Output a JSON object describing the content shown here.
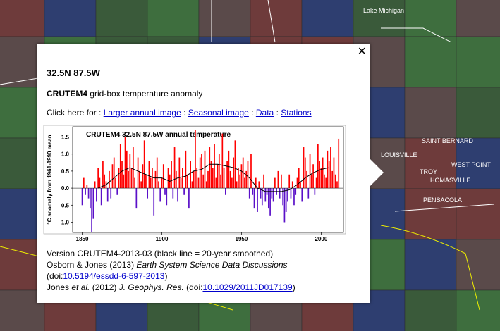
{
  "map_labels": [
    "Lake Michigan",
    "SAINT BERNARD",
    "LOUISVILLE",
    "WEST POINT",
    "TROY",
    "HOMASVILLE",
    "PENSACOLA"
  ],
  "popup": {
    "close": "×",
    "title": "32.5N 87.5W",
    "subtitle": [
      {
        "text": "CRUTEM4",
        "bold": true
      },
      {
        "text": " grid-box temperature anomaly"
      }
    ],
    "links": [
      {
        "text": "Click here for : "
      },
      {
        "text": "Larger annual image",
        "link": true
      },
      {
        "text": " : "
      },
      {
        "text": "Seasonal image",
        "link": true
      },
      {
        "text": " : "
      },
      {
        "text": "Data",
        "link": true
      },
      {
        "text": " : "
      },
      {
        "text": "Stations",
        "link": true
      }
    ],
    "footer": [
      [
        {
          "text": "Version CRUTEM4-2013-03 (black line = 20-year smoothed)"
        }
      ],
      [
        {
          "text": "Osborn & Jones (2013) "
        },
        {
          "text": "Earth System Science Data Discussions",
          "italic": true
        }
      ],
      [
        {
          "text": "(doi:"
        },
        {
          "text": "10.5194/essdd-6-597-2013",
          "link": true
        },
        {
          "text": ")"
        }
      ],
      [
        {
          "text": "Jones "
        },
        {
          "text": "et al.",
          "italic": true
        },
        {
          "text": " (2012) "
        },
        {
          "text": "J. Geophys. Res.",
          "italic": true
        },
        {
          "text": " (doi:"
        },
        {
          "text": "10.1029/2011JD017139",
          "link": true
        },
        {
          "text": ")"
        }
      ]
    ]
  },
  "chart_data": {
    "type": "bar",
    "title": "CRUTEM4 32.5N 87.5W annual temperature",
    "y_label": "°C anomaly from 1961-1990 mean",
    "xlim": [
      1844,
      2014
    ],
    "xticks": [
      1850,
      1900,
      1950,
      2000
    ],
    "ylim": [
      -1.3,
      1.8
    ],
    "yticks": [
      {
        "value": -1,
        "label": "-1.0"
      },
      -0.5,
      {
        "value": 0,
        "label": "0.0"
      },
      0.5,
      {
        "value": 1,
        "label": "1.0"
      },
      1.5
    ],
    "positive_color": "#ff0000",
    "negative_color": "#5a10c8",
    "x": [
      1850,
      1851,
      1852,
      1853,
      1854,
      1855,
      1856,
      1857,
      1858,
      1859,
      1860,
      1861,
      1862,
      1863,
      1864,
      1865,
      1866,
      1867,
      1868,
      1869,
      1870,
      1871,
      1872,
      1873,
      1874,
      1875,
      1876,
      1877,
      1878,
      1879,
      1880,
      1881,
      1882,
      1883,
      1884,
      1885,
      1886,
      1887,
      1888,
      1889,
      1890,
      1891,
      1892,
      1893,
      1894,
      1895,
      1896,
      1897,
      1898,
      1899,
      1900,
      1901,
      1902,
      1903,
      1904,
      1905,
      1906,
      1907,
      1908,
      1909,
      1910,
      1911,
      1912,
      1913,
      1914,
      1915,
      1916,
      1917,
      1918,
      1919,
      1920,
      1921,
      1922,
      1923,
      1924,
      1925,
      1926,
      1927,
      1928,
      1929,
      1930,
      1931,
      1932,
      1933,
      1934,
      1935,
      1936,
      1937,
      1938,
      1939,
      1940,
      1941,
      1942,
      1943,
      1944,
      1945,
      1946,
      1947,
      1948,
      1949,
      1950,
      1951,
      1952,
      1953,
      1954,
      1955,
      1956,
      1957,
      1958,
      1959,
      1960,
      1961,
      1962,
      1963,
      1964,
      1965,
      1966,
      1967,
      1968,
      1969,
      1970,
      1971,
      1972,
      1973,
      1974,
      1975,
      1976,
      1977,
      1978,
      1979,
      1980,
      1981,
      1982,
      1983,
      1984,
      1985,
      1986,
      1987,
      1988,
      1989,
      1990,
      1991,
      1992,
      1993,
      1994,
      1995,
      1996,
      1997,
      1998,
      1999,
      2000,
      2001,
      2002,
      2003,
      2004,
      2005,
      2006,
      2007,
      2008,
      2009,
      2010,
      2011
    ],
    "values": [
      -0.5,
      0.3,
      -0.2,
      0.1,
      -0.3,
      -0.6,
      -1.3,
      -0.9,
      0.2,
      -0.4,
      0.6,
      0.3,
      -0.5,
      0.8,
      0.4,
      0.2,
      -0.4,
      0.5,
      -0.3,
      0.7,
      0.9,
      0.3,
      -0.2,
      0.6,
      1.3,
      0.8,
      0.4,
      1.5,
      1.1,
      0.5,
      1.0,
      0.6,
      1.2,
      0.3,
      -0.6,
      0.9,
      0.5,
      0.2,
      0.7,
      1.4,
      0.4,
      -0.3,
      0.8,
      0.3,
      0.6,
      -0.8,
      0.5,
      0.9,
      0.2,
      -0.4,
      0.3,
      0.7,
      -0.2,
      -0.5,
      0.6,
      0.4,
      0.8,
      -0.3,
      1.2,
      0.5,
      -0.4,
      0.9,
      0.3,
      0.6,
      -0.2,
      1.1,
      0.4,
      -0.6,
      0.8,
      0.2,
      0.5,
      1.7,
      0.6,
      0.3,
      0.9,
      1.0,
      0.4,
      1.1,
      0.2,
      0.5,
      1.2,
      0.8,
      0.6,
      1.3,
      0.3,
      0.7,
      1.0,
      0.4,
      1.6,
      0.6,
      -0.2,
      0.8,
      1.1,
      0.5,
      0.3,
      0.9,
      1.4,
      0.2,
      0.6,
      0.4,
      0.7,
      0.9,
      0.3,
      0.5,
      0.8,
      -0.3,
      1.0,
      -0.2,
      -0.6,
      0.3,
      -0.7,
      0.2,
      -0.3,
      -0.5,
      0.4,
      -0.4,
      -0.2,
      -0.6,
      -0.8,
      -0.3,
      -0.4,
      0.3,
      -0.2,
      0.5,
      -0.3,
      0.4,
      -0.5,
      -1.0,
      -0.7,
      -0.4,
      0.4,
      -0.3,
      0.2,
      -0.5,
      -0.2,
      0.3,
      0.6,
      0.2,
      -0.4,
      1.2,
      0.9,
      0.5,
      -0.3,
      1.0,
      0.4,
      0.7,
      -0.2,
      0.3,
      1.3,
      0.8,
      0.6,
      0.9,
      0.4,
      0.3,
      1.1,
      0.8,
      1.2,
      0.5,
      0.9,
      0.4,
      0.2,
      1.45
    ],
    "smoothed": {
      "color": "#000000",
      "x": [
        1860,
        1865,
        1870,
        1875,
        1880,
        1885,
        1890,
        1895,
        1900,
        1905,
        1910,
        1915,
        1920,
        1925,
        1930,
        1935,
        1940,
        1945,
        1950,
        1955,
        1960,
        1965,
        1970,
        1975,
        1980,
        1985,
        1990,
        1995,
        2000,
        2005
      ],
      "values": [
        0.0,
        0.1,
        0.3,
        0.5,
        0.6,
        0.5,
        0.4,
        0.3,
        0.3,
        0.2,
        0.3,
        0.35,
        0.5,
        0.55,
        0.7,
        0.7,
        0.65,
        0.6,
        0.5,
        0.3,
        0.0,
        -0.1,
        -0.1,
        -0.1,
        -0.05,
        0.1,
        0.3,
        0.45,
        0.55,
        0.6
      ]
    }
  }
}
